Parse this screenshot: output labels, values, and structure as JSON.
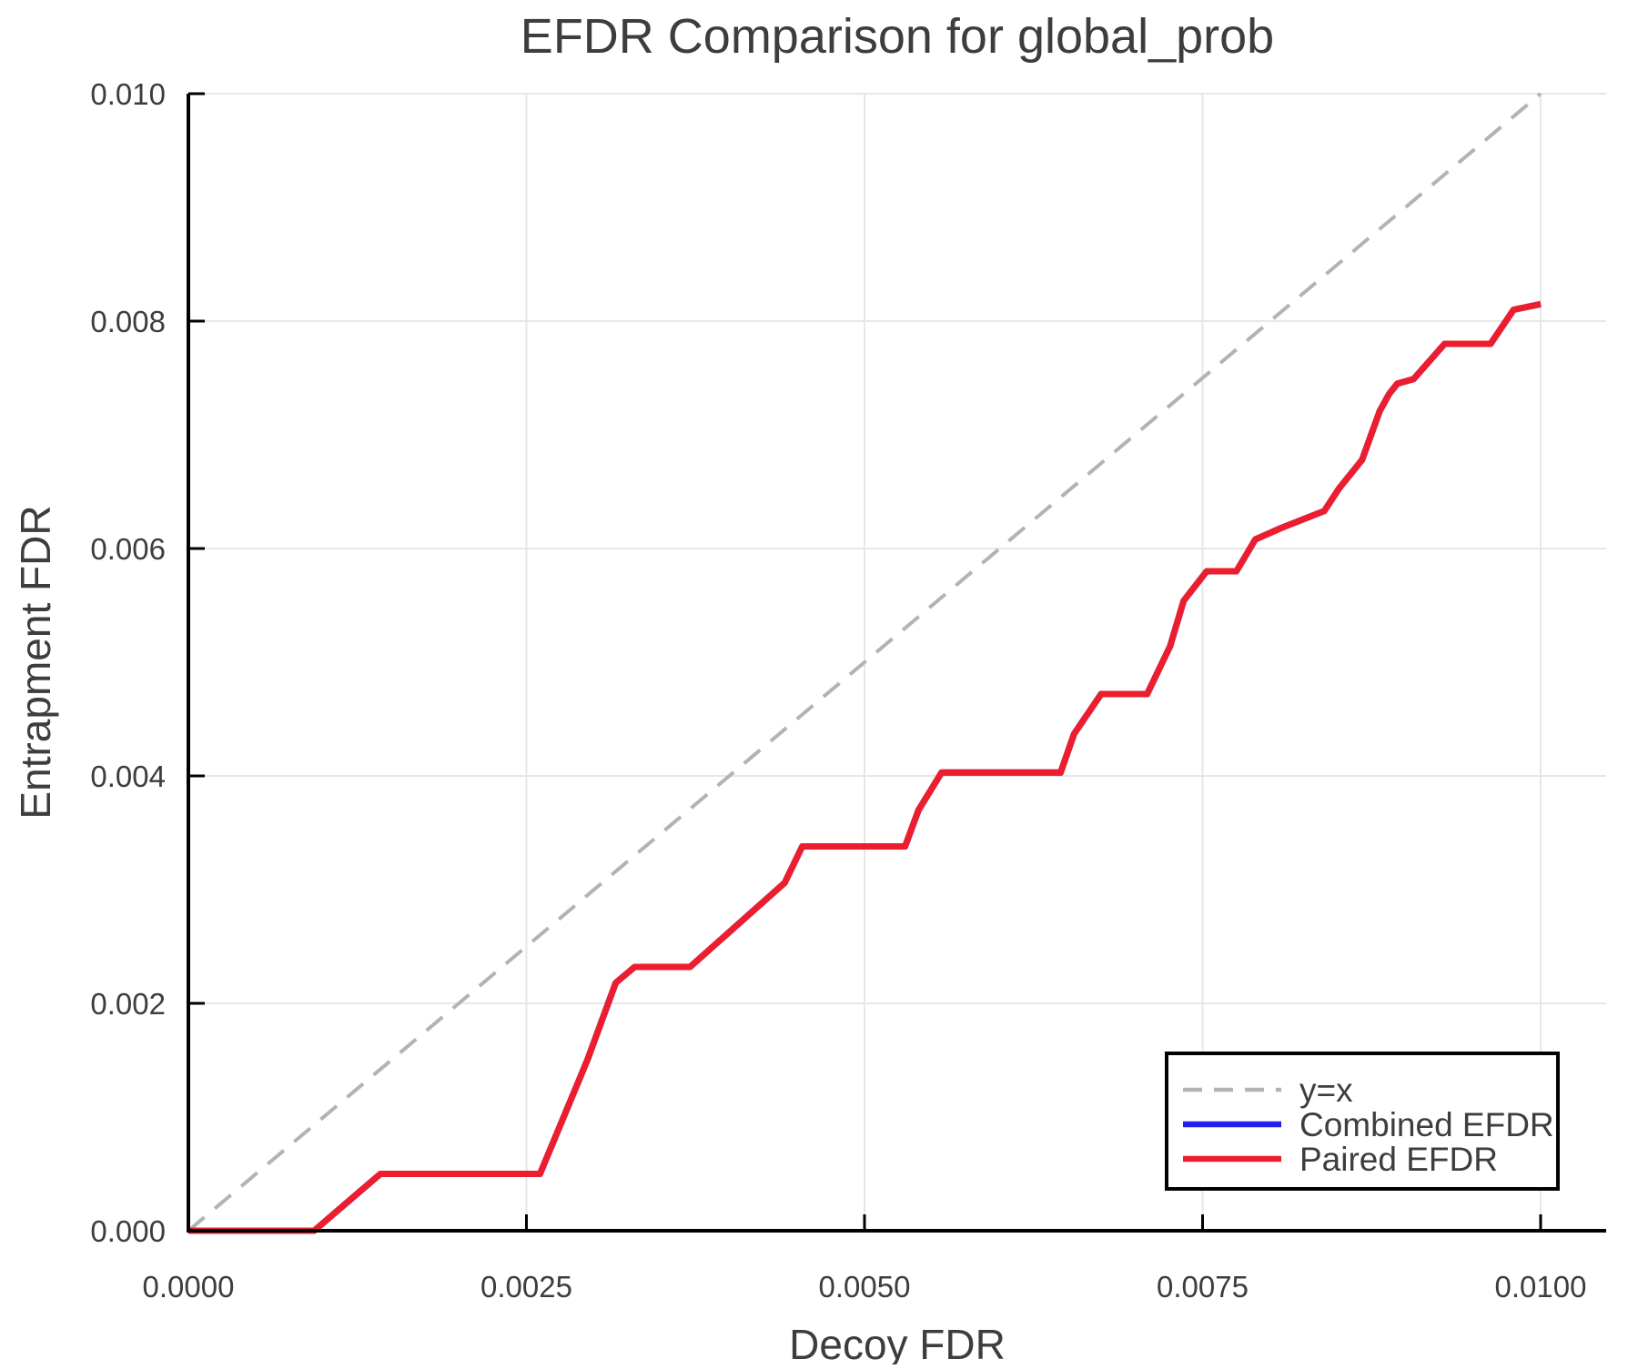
{
  "colors": {
    "background": "#ffffff",
    "text": "#3d3d3d",
    "grid": "#e7e7e7",
    "spine": "#000000",
    "diagonal": "#b3b3b3",
    "combined": "#2121ED",
    "paired": "#EC1E2E"
  },
  "chart_data": {
    "type": "line",
    "title": "EFDR Comparison for global_prob",
    "xlabel": "Decoy FDR",
    "ylabel": "Entrapment FDR",
    "xlim": [
      0.0,
      0.0105
    ],
    "ylim": [
      0.0,
      0.0101
    ],
    "grid": true,
    "legend_position": "lower right",
    "x_ticks": {
      "values": [
        0.0,
        0.0025,
        0.005,
        0.0075,
        0.01
      ],
      "labels": [
        "0.0000",
        "0.0025",
        "0.0050",
        "0.0075",
        "0.0100"
      ]
    },
    "y_ticks": {
      "values": [
        0.0,
        0.002,
        0.004,
        0.006,
        0.008,
        0.01
      ],
      "labels": [
        "0.000",
        "0.002",
        "0.004",
        "0.006",
        "0.008",
        "0.010"
      ]
    },
    "series": [
      {
        "name": "y=x",
        "id": "y-equals-x",
        "color": "#b3b3b3",
        "style": "dashed",
        "points": [
          [
            0.0,
            0.0
          ],
          [
            0.01,
            0.01
          ]
        ]
      },
      {
        "name": "Combined EFDR",
        "id": "combined-efdr",
        "color": "#2121ED",
        "style": "solid",
        "points": [
          [
            0.0,
            0.0
          ],
          [
            0.00093,
            0.0
          ],
          [
            0.00142,
            0.0005
          ],
          [
            0.0026,
            0.0005
          ],
          [
            0.00295,
            0.0015
          ],
          [
            0.00316,
            0.00218
          ],
          [
            0.0033,
            0.00232
          ],
          [
            0.00371,
            0.00232
          ],
          [
            0.00441,
            0.00306
          ],
          [
            0.00454,
            0.00338
          ],
          [
            0.0053,
            0.00338
          ],
          [
            0.0054,
            0.0037
          ],
          [
            0.00557,
            0.00403
          ],
          [
            0.00645,
            0.00403
          ],
          [
            0.00655,
            0.00437
          ],
          [
            0.00675,
            0.00472
          ],
          [
            0.00709,
            0.00472
          ],
          [
            0.00726,
            0.00514
          ],
          [
            0.00736,
            0.00554
          ],
          [
            0.00753,
            0.0058
          ],
          [
            0.00775,
            0.0058
          ],
          [
            0.00789,
            0.00608
          ],
          [
            0.00808,
            0.00618
          ],
          [
            0.0084,
            0.00633
          ],
          [
            0.00851,
            0.00653
          ],
          [
            0.00868,
            0.00678
          ],
          [
            0.00881,
            0.00721
          ],
          [
            0.00888,
            0.00736
          ],
          [
            0.00894,
            0.00745
          ],
          [
            0.00906,
            0.00749
          ],
          [
            0.00929,
            0.0078
          ],
          [
            0.00963,
            0.0078
          ],
          [
            0.0098,
            0.0081
          ],
          [
            0.01,
            0.00815
          ]
        ]
      },
      {
        "name": "Paired EFDR",
        "id": "paired-efdr",
        "color": "#EC1E2E",
        "style": "solid",
        "points": [
          [
            0.0,
            0.0
          ],
          [
            0.00093,
            0.0
          ],
          [
            0.00142,
            0.0005
          ],
          [
            0.0026,
            0.0005
          ],
          [
            0.00295,
            0.0015
          ],
          [
            0.00316,
            0.00218
          ],
          [
            0.0033,
            0.00232
          ],
          [
            0.00371,
            0.00232
          ],
          [
            0.00441,
            0.00306
          ],
          [
            0.00454,
            0.00338
          ],
          [
            0.0053,
            0.00338
          ],
          [
            0.0054,
            0.0037
          ],
          [
            0.00557,
            0.00403
          ],
          [
            0.00645,
            0.00403
          ],
          [
            0.00655,
            0.00437
          ],
          [
            0.00675,
            0.00472
          ],
          [
            0.00709,
            0.00472
          ],
          [
            0.00726,
            0.00514
          ],
          [
            0.00736,
            0.00554
          ],
          [
            0.00753,
            0.0058
          ],
          [
            0.00775,
            0.0058
          ],
          [
            0.00789,
            0.00608
          ],
          [
            0.00808,
            0.00618
          ],
          [
            0.0084,
            0.00633
          ],
          [
            0.00851,
            0.00653
          ],
          [
            0.00868,
            0.00678
          ],
          [
            0.00881,
            0.00721
          ],
          [
            0.00888,
            0.00736
          ],
          [
            0.00894,
            0.00745
          ],
          [
            0.00906,
            0.00749
          ],
          [
            0.00929,
            0.0078
          ],
          [
            0.00963,
            0.0078
          ],
          [
            0.0098,
            0.0081
          ],
          [
            0.01,
            0.00815
          ]
        ]
      }
    ]
  }
}
